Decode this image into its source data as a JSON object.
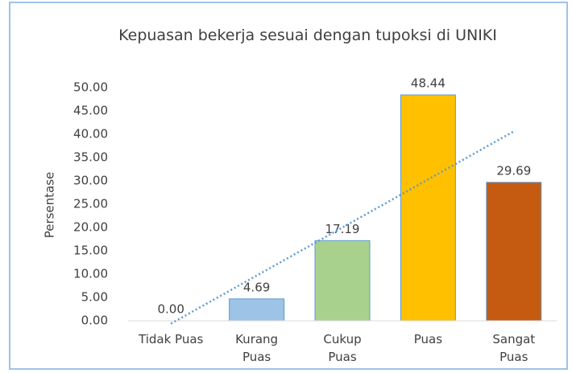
{
  "chart_data": {
    "type": "bar",
    "title": "Kepuasan bekerja sesuai dengan tupoksi di UNIKI",
    "ylabel": "Persentase",
    "categories": [
      "Tidak Puas",
      "Kurang Puas",
      "Cukup Puas",
      "Puas",
      "Sangat Puas"
    ],
    "values": [
      0,
      4.69,
      17.19,
      48.44,
      29.69
    ],
    "value_labels": [
      "0.00",
      "4.69",
      "17.19",
      "48.44",
      "29.69"
    ],
    "colors": [
      "#9dc3e6",
      "#9dc3e6",
      "#a9d18e",
      "#ffc000",
      "#c55a11"
    ],
    "ylim": [
      0,
      50
    ],
    "yticks": [
      {
        "value": 0,
        "label": "0.00"
      },
      {
        "value": 5,
        "label": "5.00"
      },
      {
        "value": 10,
        "label": "10.00"
      },
      {
        "value": 15,
        "label": "15.00"
      },
      {
        "value": 20,
        "label": "20.00"
      },
      {
        "value": 25,
        "label": "25.00"
      },
      {
        "value": 30,
        "label": "30.00"
      },
      {
        "value": 35,
        "label": "35.00"
      },
      {
        "value": 40,
        "label": "40.00"
      },
      {
        "value": 45,
        "label": "45.00"
      },
      {
        "value": 50,
        "label": "50.00"
      }
    ],
    "grid": false,
    "trendline": {
      "type": "linear",
      "color": "#5b9bd5"
    }
  }
}
